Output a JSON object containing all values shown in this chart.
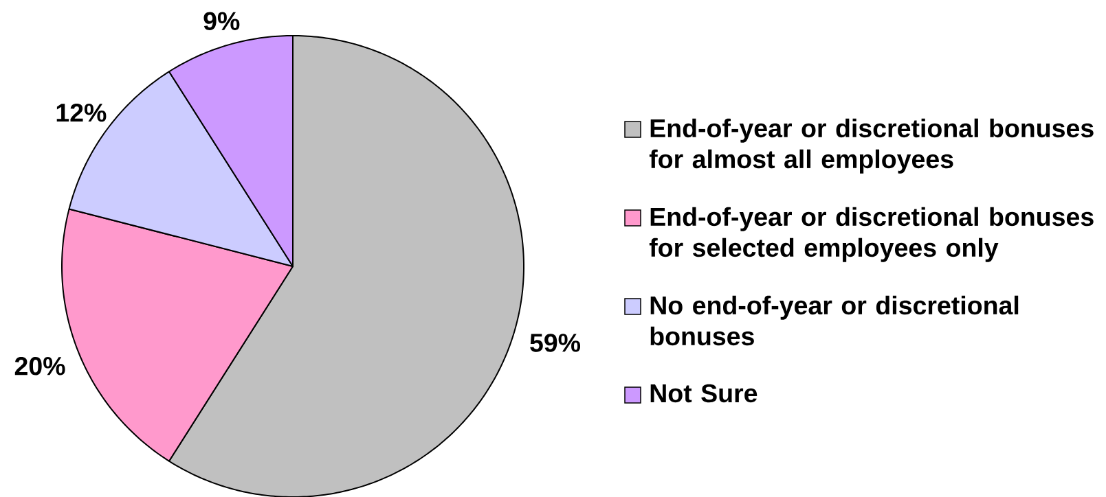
{
  "chart_data": {
    "type": "pie",
    "categories": [
      "End-of-year or discretional bonuses for almost all employees",
      "End-of-year or discretional bonuses for selected employees only",
      "No end-of-year or discretional bonuses",
      "Not Sure"
    ],
    "values": [
      59,
      20,
      12,
      9
    ],
    "colors": [
      "#c0c0c0",
      "#ff99cc",
      "#ccccff",
      "#cc99ff"
    ],
    "value_labels": [
      "59%",
      "20%",
      "12%",
      "9%"
    ],
    "legend": "right"
  }
}
